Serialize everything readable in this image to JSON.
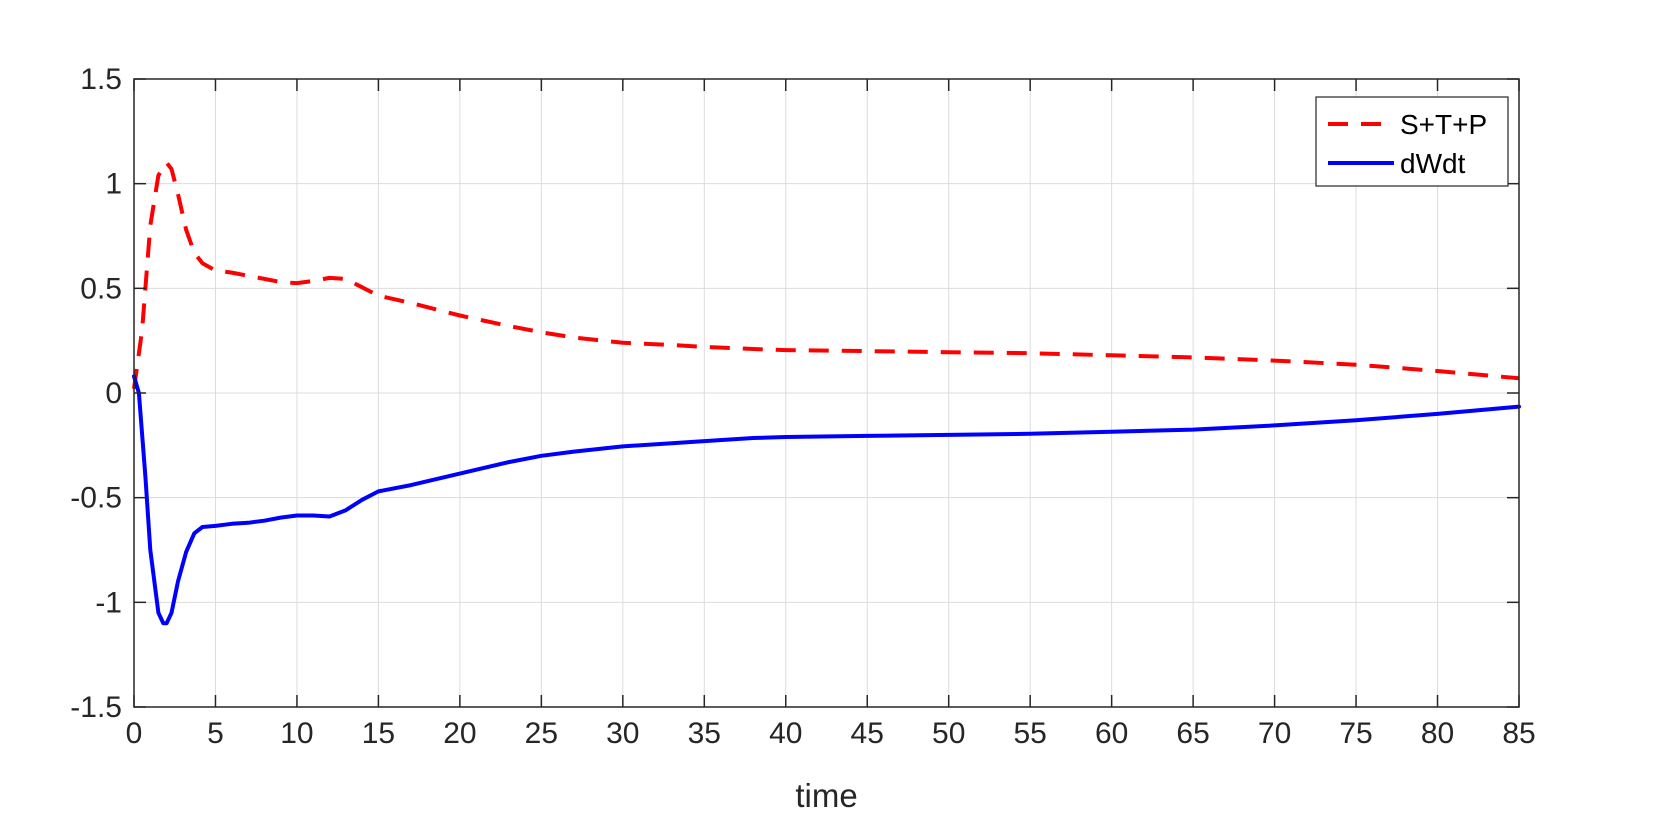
{
  "chart_data": {
    "type": "line",
    "title": "",
    "xlabel": "time",
    "ylabel": "",
    "xlim": [
      0,
      85
    ],
    "ylim": [
      -1.5,
      1.5
    ],
    "xticks": [
      0,
      5,
      10,
      15,
      20,
      25,
      30,
      35,
      40,
      45,
      50,
      55,
      60,
      65,
      70,
      75,
      80,
      85
    ],
    "xtick_labels": [
      "0",
      "5",
      "10",
      "15",
      "20",
      "25",
      "30",
      "35",
      "40",
      "45",
      "50",
      "55",
      "60",
      "65",
      "70",
      "75",
      "80",
      "85"
    ],
    "yticks": [
      -1.5,
      -1,
      -0.5,
      0,
      0.5,
      1,
      1.5
    ],
    "ytick_labels": [
      "-1.5",
      "-1",
      "-0.5",
      "0",
      "0.5",
      "1",
      "1.5"
    ],
    "grid": true,
    "legend_position": "top-right",
    "series": [
      {
        "name": "S+T+P",
        "color": "#ff0000",
        "style": "dashed",
        "x": [
          0,
          0.5,
          1,
          1.5,
          2,
          2.3,
          2.7,
          3.2,
          3.7,
          4.2,
          5,
          6,
          7,
          8,
          9,
          10,
          11,
          12,
          13,
          14,
          15,
          17,
          20,
          23,
          25,
          27,
          30,
          33,
          35,
          38,
          40,
          45,
          50,
          55,
          60,
          65,
          70,
          75,
          80,
          85
        ],
        "y": [
          0.02,
          0.3,
          0.8,
          1.04,
          1.1,
          1.07,
          0.95,
          0.78,
          0.67,
          0.62,
          0.585,
          0.575,
          0.56,
          0.545,
          0.53,
          0.525,
          0.535,
          0.55,
          0.545,
          0.505,
          0.465,
          0.43,
          0.37,
          0.32,
          0.29,
          0.265,
          0.24,
          0.23,
          0.22,
          0.21,
          0.205,
          0.2,
          0.195,
          0.19,
          0.18,
          0.17,
          0.155,
          0.135,
          0.105,
          0.07
        ]
      },
      {
        "name": "dWdt",
        "color": "#0000ff",
        "style": "solid",
        "x": [
          0,
          0.3,
          0.7,
          1,
          1.5,
          1.8,
          2,
          2.3,
          2.7,
          3.2,
          3.7,
          4.2,
          5,
          6,
          7,
          8,
          9,
          10,
          11,
          12,
          13,
          14,
          15,
          17,
          20,
          23,
          25,
          27,
          30,
          33,
          35,
          38,
          40,
          45,
          50,
          55,
          60,
          65,
          70,
          75,
          80,
          85
        ],
        "y": [
          0.08,
          0.0,
          -0.4,
          -0.75,
          -1.05,
          -1.1,
          -1.1,
          -1.05,
          -0.9,
          -0.76,
          -0.67,
          -0.64,
          -0.635,
          -0.625,
          -0.62,
          -0.61,
          -0.595,
          -0.585,
          -0.585,
          -0.59,
          -0.56,
          -0.51,
          -0.47,
          -0.44,
          -0.385,
          -0.33,
          -0.3,
          -0.28,
          -0.255,
          -0.24,
          -0.23,
          -0.215,
          -0.21,
          -0.205,
          -0.2,
          -0.195,
          -0.185,
          -0.175,
          -0.155,
          -0.13,
          -0.1,
          -0.065
        ]
      }
    ]
  }
}
